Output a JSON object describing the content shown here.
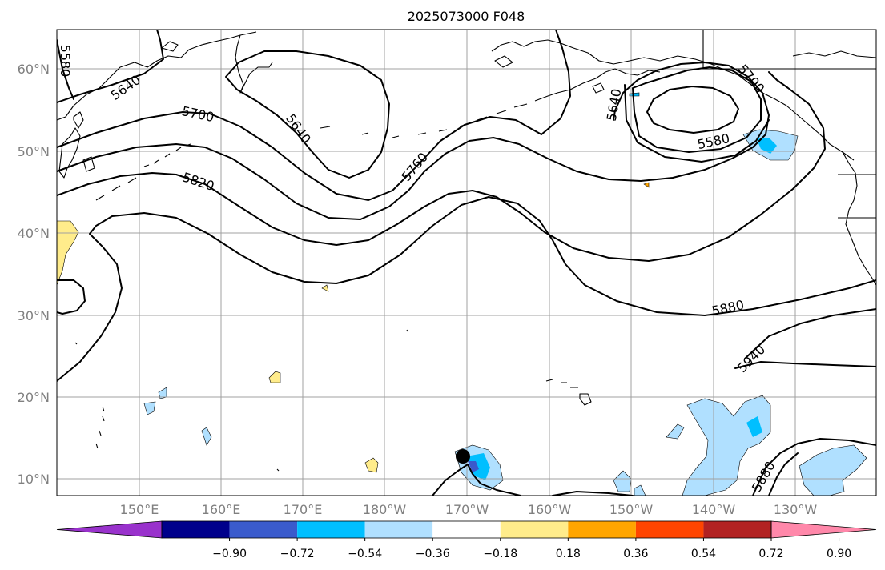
{
  "title": "2025073000 F048",
  "lat_labels": [
    "60°N",
    "50°N",
    "40°N",
    "30°N",
    "20°N",
    "10°N"
  ],
  "lon_labels": [
    "150°E",
    "160°E",
    "170°E",
    "180°W",
    "170°W",
    "160°W",
    "150°W",
    "140°W",
    "130°W"
  ],
  "contour_labels": [
    "5580",
    "5640",
    "5700",
    "5820",
    "5640",
    "5760",
    "5640",
    "5580",
    "5700",
    "5880",
    "5940",
    "5880"
  ],
  "colorbar": {
    "colors": [
      "#9932cc",
      "#00008b",
      "#3a5bcc",
      "#00bfff",
      "#b0e0ff",
      "#ffffff",
      "#ffec8b",
      "#ffa500",
      "#ff4500",
      "#b22222",
      "#ff88aa"
    ],
    "tick_labels": [
      "−0.90",
      "−0.72",
      "−0.54",
      "−0.36",
      "−0.18",
      "0.18",
      "0.36",
      "0.54",
      "0.72",
      "0.90"
    ]
  },
  "colors": {
    "contour": "#000000",
    "grid": "#a0a0a0",
    "tick_label": "#808080",
    "cyclone_marker": "#000000"
  }
}
